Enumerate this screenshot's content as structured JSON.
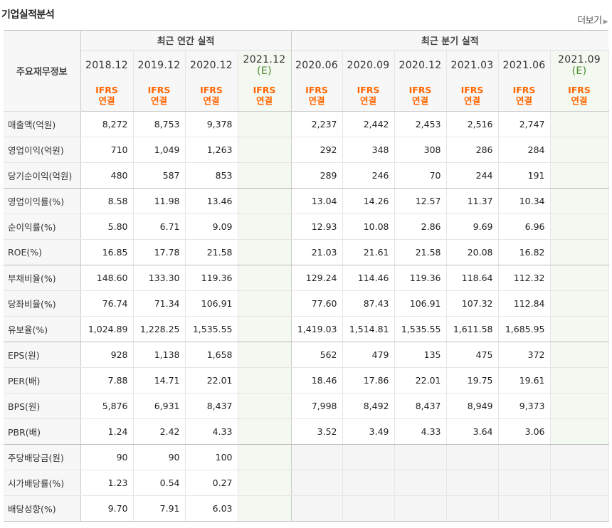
{
  "title": "기업실적분석",
  "more_label": "더보기",
  "item_header": "주요재무정보",
  "groups": {
    "annual": "최근 연간 실적",
    "quarterly": "최근 분기 실적"
  },
  "annual_periods": [
    {
      "period": "2018.12",
      "est": ""
    },
    {
      "period": "2019.12",
      "est": ""
    },
    {
      "period": "2020.12",
      "est": ""
    },
    {
      "period": "2021.12",
      "est": "(E)"
    }
  ],
  "quarter_periods": [
    {
      "period": "2020.06",
      "est": ""
    },
    {
      "period": "2020.09",
      "est": ""
    },
    {
      "period": "2020.12",
      "est": ""
    },
    {
      "period": "2021.03",
      "est": ""
    },
    {
      "period": "2021.06",
      "est": ""
    },
    {
      "period": "2021.09",
      "est": "(E)"
    }
  ],
  "basis": {
    "line1": "IFRS",
    "line2": "연결"
  },
  "rows": [
    {
      "label": "매출액(억원)",
      "annual": [
        "8,272",
        "8,753",
        "9,378",
        ""
      ],
      "quarterly": [
        "2,237",
        "2,442",
        "2,453",
        "2,516",
        "2,747",
        ""
      ]
    },
    {
      "label": "영업이익(억원)",
      "annual": [
        "710",
        "1,049",
        "1,263",
        ""
      ],
      "quarterly": [
        "292",
        "348",
        "308",
        "286",
        "284",
        ""
      ]
    },
    {
      "label": "당기순이익(억원)",
      "annual": [
        "480",
        "587",
        "853",
        ""
      ],
      "quarterly": [
        "289",
        "246",
        "70",
        "244",
        "191",
        ""
      ]
    },
    {
      "label": "영업이익률(%)",
      "annual": [
        "8.58",
        "11.98",
        "13.46",
        ""
      ],
      "quarterly": [
        "13.04",
        "14.26",
        "12.57",
        "11.37",
        "10.34",
        ""
      ]
    },
    {
      "label": "순이익률(%)",
      "annual": [
        "5.80",
        "6.71",
        "9.09",
        ""
      ],
      "quarterly": [
        "12.93",
        "10.08",
        "2.86",
        "9.69",
        "6.96",
        ""
      ]
    },
    {
      "label": "ROE(%)",
      "annual": [
        "16.85",
        "17.78",
        "21.58",
        ""
      ],
      "quarterly": [
        "21.03",
        "21.61",
        "21.58",
        "20.08",
        "16.82",
        ""
      ]
    },
    {
      "label": "부채비율(%)",
      "annual": [
        "148.60",
        "133.30",
        "119.36",
        ""
      ],
      "quarterly": [
        "129.24",
        "114.46",
        "119.36",
        "118.64",
        "112.32",
        ""
      ]
    },
    {
      "label": "당좌비율(%)",
      "annual": [
        "76.74",
        "71.34",
        "106.91",
        ""
      ],
      "quarterly": [
        "77.60",
        "87.43",
        "106.91",
        "107.32",
        "112.84",
        ""
      ]
    },
    {
      "label": "유보율(%)",
      "annual": [
        "1,024.89",
        "1,228.25",
        "1,535.55",
        ""
      ],
      "quarterly": [
        "1,419.03",
        "1,514.81",
        "1,535.55",
        "1,611.58",
        "1,685.95",
        ""
      ]
    },
    {
      "label": "EPS(원)",
      "annual": [
        "928",
        "1,138",
        "1,658",
        ""
      ],
      "quarterly": [
        "562",
        "479",
        "135",
        "475",
        "372",
        ""
      ]
    },
    {
      "label": "PER(배)",
      "annual": [
        "7.88",
        "14.71",
        "22.01",
        ""
      ],
      "quarterly": [
        "18.46",
        "17.86",
        "22.01",
        "19.75",
        "19.61",
        ""
      ]
    },
    {
      "label": "BPS(원)",
      "annual": [
        "5,876",
        "6,931",
        "8,437",
        ""
      ],
      "quarterly": [
        "7,998",
        "8,492",
        "8,437",
        "8,949",
        "9,373",
        ""
      ]
    },
    {
      "label": "PBR(배)",
      "annual": [
        "1.24",
        "2.42",
        "4.33",
        ""
      ],
      "quarterly": [
        "3.52",
        "3.49",
        "4.33",
        "3.64",
        "3.06",
        ""
      ]
    },
    {
      "label": "주당배당금(원)",
      "annual": [
        "90",
        "90",
        "100",
        ""
      ],
      "quarterly": [
        "",
        "",
        "",
        "",
        "",
        ""
      ],
      "quarterly_blank": true
    },
    {
      "label": "시가배당률(%)",
      "annual": [
        "1.23",
        "0.54",
        "0.27",
        ""
      ],
      "quarterly": [
        "",
        "",
        "",
        "",
        "",
        ""
      ],
      "quarterly_blank": true
    },
    {
      "label": "배당성향(%)",
      "annual": [
        "9.70",
        "7.91",
        "6.03",
        ""
      ],
      "quarterly": [
        "",
        "",
        "",
        "",
        "",
        ""
      ],
      "quarterly_blank": true
    }
  ]
}
